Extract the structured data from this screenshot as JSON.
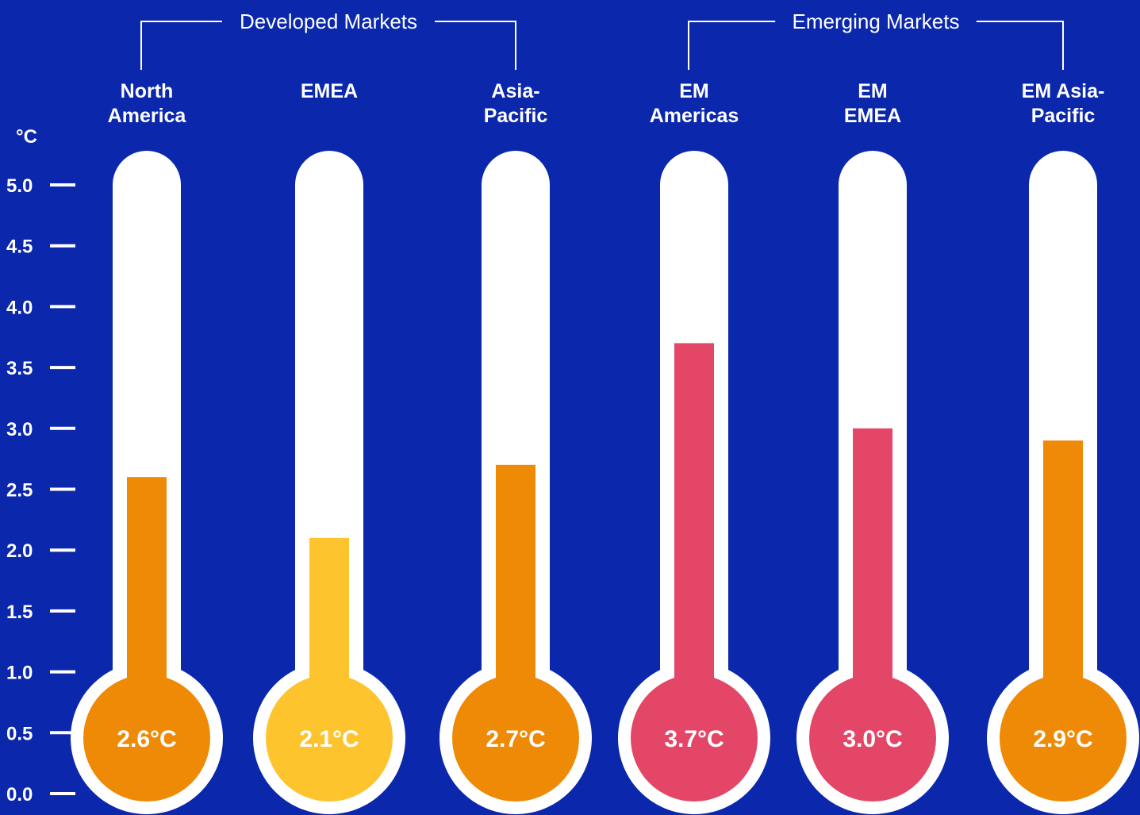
{
  "chart_data": {
    "type": "bar",
    "ylabel": "°C",
    "ylim": [
      0,
      5.0
    ],
    "yticks": [
      "0.0",
      "0.5",
      "1.0",
      "1.5",
      "2.0",
      "2.5",
      "3.0",
      "3.5",
      "4.0",
      "4.5",
      "5.0"
    ],
    "groups": [
      {
        "label": "Developed Markets",
        "categories": [
          0,
          2
        ]
      },
      {
        "label": "Emerging Markets",
        "categories": [
          3,
          5
        ]
      }
    ],
    "categories": [
      [
        "North",
        "America"
      ],
      [
        "EMEA"
      ],
      [
        "Asia-",
        "Pacific"
      ],
      [
        "EM",
        "Americas"
      ],
      [
        "EM",
        "EMEA"
      ],
      [
        "EM Asia-",
        "Pacific"
      ]
    ],
    "values": [
      2.6,
      2.1,
      2.7,
      3.7,
      3.0,
      2.9
    ],
    "data_labels": [
      "2.6°C",
      "2.1°C",
      "2.7°C",
      "3.7°C",
      "3.0°C",
      "2.9°C"
    ],
    "colors": [
      "#ee8a05",
      "#fdc42e",
      "#ee8a05",
      "#e34666",
      "#e34666",
      "#ee8a05"
    ],
    "background": "#0b27ac",
    "tube_color": "#ffffff",
    "grid": false
  }
}
